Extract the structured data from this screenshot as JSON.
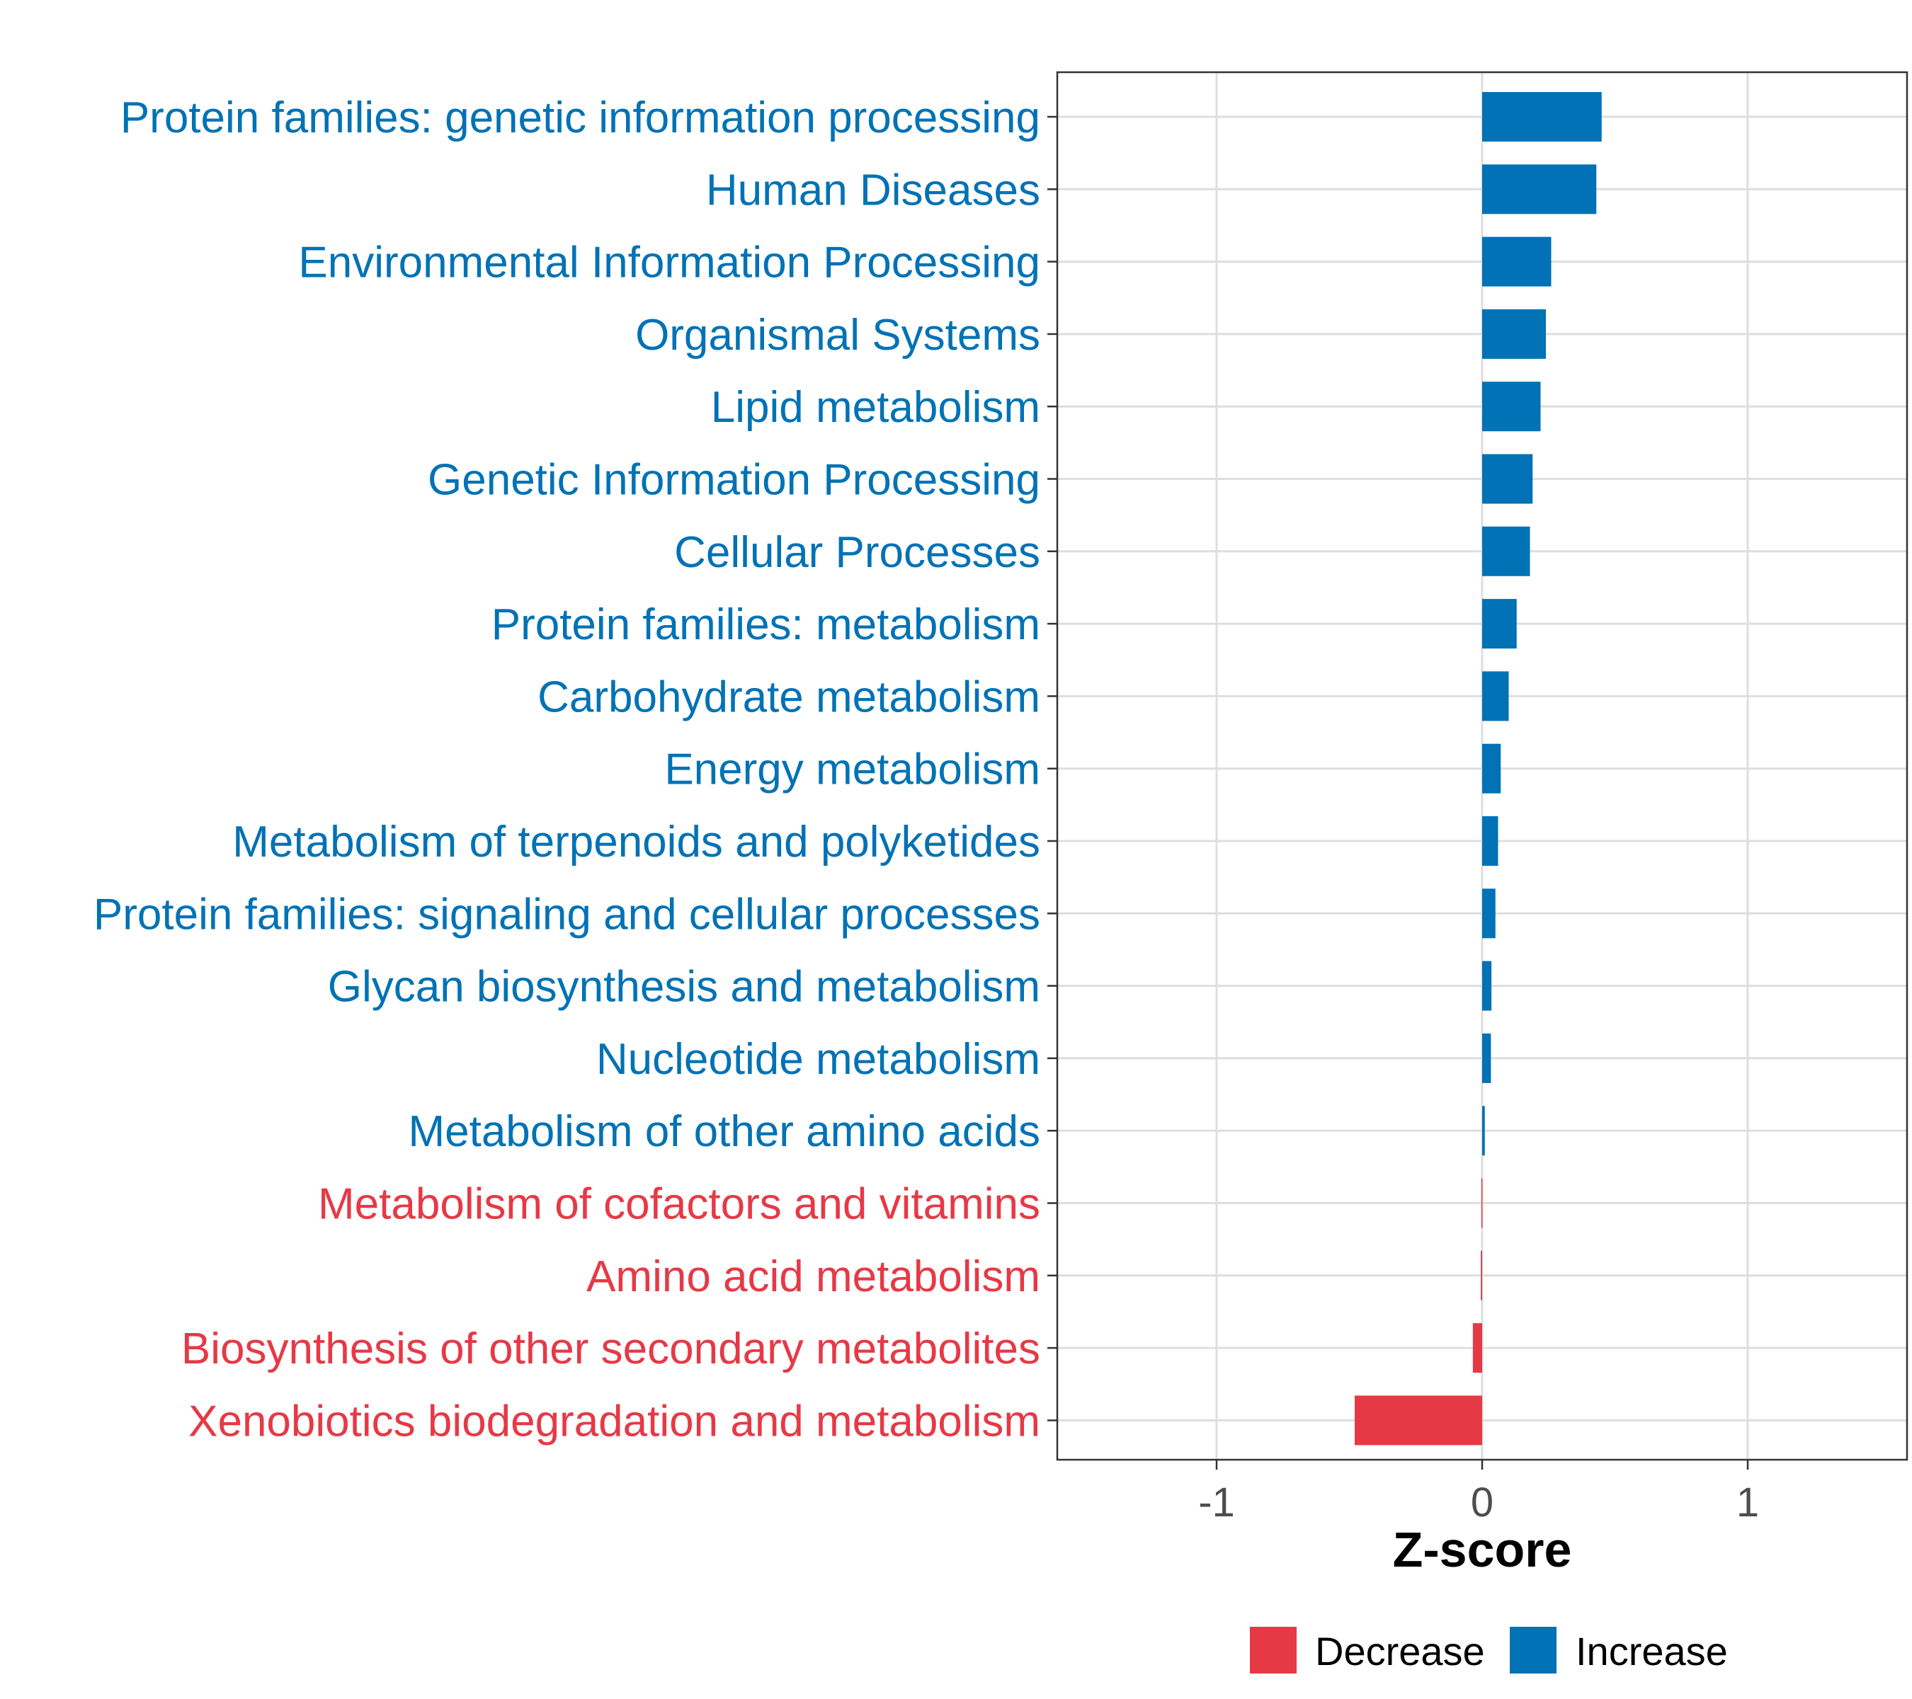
{
  "chart_data": {
    "type": "bar",
    "orientation": "horizontal",
    "title": "",
    "xlabel": "Z-score",
    "ylabel": "",
    "xlim": [
      -1.6,
      1.6
    ],
    "xticks": [
      -1,
      0,
      1
    ],
    "xtick_labels": [
      "-1",
      "0",
      "1"
    ],
    "grid": true,
    "legend_position": "bottom",
    "legend": [
      {
        "label": "Decrease",
        "color": "#E63946"
      },
      {
        "label": "Increase",
        "color": "#0072B5"
      }
    ],
    "categories": [
      "Protein families: genetic information processing",
      "Human Diseases",
      "Environmental Information Processing",
      "Organismal Systems",
      "Lipid metabolism",
      "Genetic Information Processing",
      "Cellular Processes",
      "Protein families: metabolism",
      "Carbohydrate metabolism",
      "Energy metabolism",
      "Metabolism of terpenoids and polyketides",
      "Protein families: signaling and cellular processes",
      "Glycan biosynthesis and metabolism",
      "Nucleotide metabolism",
      "Metabolism of other amino acids",
      "Metabolism of cofactors and vitamins",
      "Amino acid metabolism",
      "Biosynthesis of other secondary metabolites",
      "Xenobiotics biodegradation and metabolism"
    ],
    "values": [
      0.45,
      0.43,
      0.26,
      0.24,
      0.22,
      0.19,
      0.18,
      0.13,
      0.1,
      0.07,
      0.06,
      0.05,
      0.035,
      0.033,
      0.01,
      -0.003,
      -0.005,
      -0.035,
      -0.48
    ],
    "groups": [
      "Increase",
      "Increase",
      "Increase",
      "Increase",
      "Increase",
      "Increase",
      "Increase",
      "Increase",
      "Increase",
      "Increase",
      "Increase",
      "Increase",
      "Increase",
      "Increase",
      "Increase",
      "Decrease",
      "Decrease",
      "Decrease",
      "Decrease"
    ]
  }
}
